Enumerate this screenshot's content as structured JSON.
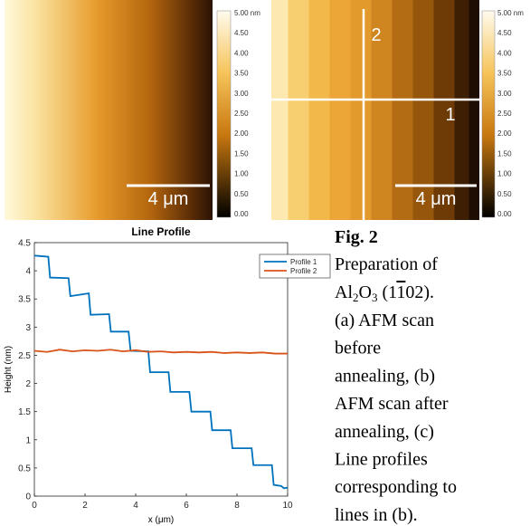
{
  "panels": [
    {
      "scale_bar": "4 μm",
      "colorbar_labels": [
        "5.00 nm",
        "4.50",
        "4.00",
        "3.50",
        "3.00",
        "2.50",
        "2.00",
        "1.50",
        "1.00",
        "0.50",
        "0.00"
      ]
    },
    {
      "scale_bar": "4 μm",
      "line_labels": [
        "2",
        "1"
      ],
      "colorbar_labels": [
        "5.00 nm",
        "4.50",
        "4.00",
        "3.50",
        "3.00",
        "2.50",
        "2.00",
        "1.50",
        "1.00",
        "0.50",
        "0.00"
      ]
    }
  ],
  "chart_data": {
    "type": "line",
    "title": "Line Profile",
    "x_label": "x (μm)",
    "y_label": "Height (nm)",
    "xlim": [
      0,
      10
    ],
    "xticks": [
      0,
      2,
      4,
      6,
      8,
      10
    ],
    "ylim": [
      0,
      4.5
    ],
    "yticks": [
      0,
      0.5,
      1,
      1.5,
      2,
      2.5,
      3,
      3.5,
      4,
      4.5
    ],
    "legend": "upper right",
    "series": [
      {
        "name": "Profile 1",
        "color": "#0072bd",
        "x": [
          0,
          0.55,
          0.62,
          1.35,
          1.42,
          2.15,
          2.22,
          2.95,
          3.02,
          3.72,
          3.8,
          4.5,
          4.57,
          5.3,
          5.37,
          6.12,
          6.2,
          6.95,
          7.02,
          7.75,
          7.82,
          8.58,
          8.65,
          9.38,
          9.45,
          9.75,
          9.85,
          10
        ],
        "values": [
          4.27,
          4.25,
          3.88,
          3.87,
          3.55,
          3.6,
          3.22,
          3.23,
          2.92,
          2.92,
          2.58,
          2.57,
          2.2,
          2.2,
          1.85,
          1.85,
          1.5,
          1.5,
          1.17,
          1.17,
          0.85,
          0.85,
          0.55,
          0.55,
          0.2,
          0.18,
          0.14,
          0.15
        ]
      },
      {
        "name": "Profile 2",
        "color": "#d95319",
        "x": [
          0,
          0.5,
          1,
          1.5,
          2,
          2.5,
          3,
          3.5,
          4,
          4.5,
          5,
          5.5,
          6,
          6.5,
          7,
          7.5,
          8,
          8.5,
          9,
          9.5,
          10
        ],
        "values": [
          2.58,
          2.56,
          2.6,
          2.57,
          2.59,
          2.58,
          2.6,
          2.57,
          2.59,
          2.56,
          2.57,
          2.55,
          2.56,
          2.55,
          2.56,
          2.54,
          2.55,
          2.54,
          2.55,
          2.53,
          2.53
        ]
      }
    ]
  },
  "caption": {
    "label": "Fig. 2",
    "line1": "Preparation of",
    "formula": {
      "a": "Al",
      "a_sub": "2",
      "b": "O",
      "b_sub": "3",
      "open": " (1",
      "bar": "1",
      "close": "02)."
    },
    "lines": [
      "(a) AFM scan",
      "before",
      "annealing, (b)",
      "AFM scan after",
      "annealing, (c)",
      "Line profiles",
      "corresponding to",
      "lines in (b)."
    ]
  }
}
